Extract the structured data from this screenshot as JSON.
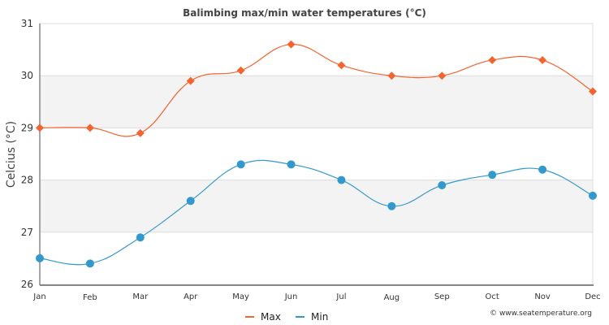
{
  "chart_data": {
    "type": "line",
    "title": "Balimbing max/min water temperatures (°C)",
    "xlabel": "",
    "ylabel": "Celcius (°C)",
    "categories": [
      "Jan",
      "Feb",
      "Mar",
      "Apr",
      "May",
      "Jun",
      "Jul",
      "Aug",
      "Sep",
      "Oct",
      "Nov",
      "Dec"
    ],
    "ylim": [
      26,
      31
    ],
    "yticks": [
      "26",
      "27",
      "28",
      "29",
      "30",
      "31"
    ],
    "series": [
      {
        "name": "Max",
        "color": "#f26430",
        "marker": "diamond",
        "values": [
          29.0,
          29.0,
          28.9,
          29.9,
          30.1,
          30.6,
          30.2,
          30.0,
          30.0,
          30.3,
          30.3,
          29.7
        ]
      },
      {
        "name": "Min",
        "color": "#3399cc",
        "marker": "circle",
        "values": [
          26.5,
          26.4,
          26.9,
          27.6,
          28.3,
          28.3,
          28.0,
          27.5,
          27.9,
          28.1,
          28.2,
          27.7
        ]
      }
    ],
    "legend": "bottom-center",
    "grid": true,
    "band_color": "#f3f3f3"
  },
  "credit": "© www.seatemperature.org"
}
